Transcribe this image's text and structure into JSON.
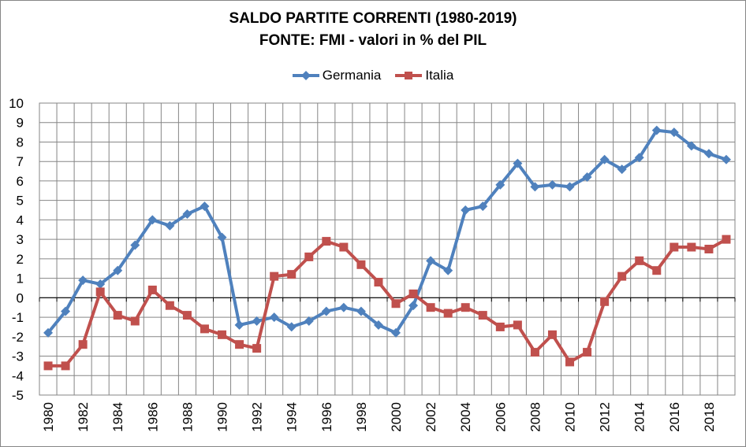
{
  "chart_data": {
    "type": "line",
    "title_lines": [
      "SALDO PARTITE CORRENTI (1980-2019)",
      "FONTE: FMI - valori in % del PIL"
    ],
    "x": [
      1980,
      1981,
      1982,
      1983,
      1984,
      1985,
      1986,
      1987,
      1988,
      1989,
      1990,
      1991,
      1992,
      1993,
      1994,
      1995,
      1996,
      1997,
      1998,
      1999,
      2000,
      2001,
      2002,
      2003,
      2004,
      2005,
      2006,
      2007,
      2008,
      2009,
      2010,
      2011,
      2012,
      2013,
      2014,
      2015,
      2016,
      2017,
      2018,
      2019
    ],
    "x_tick_labels": [
      "1980",
      "1982",
      "1984",
      "1986",
      "1988",
      "1990",
      "1992",
      "1994",
      "1996",
      "1998",
      "2000",
      "2002",
      "2004",
      "2006",
      "2008",
      "2010",
      "2012",
      "2014",
      "2016",
      "2018"
    ],
    "y_ticks": [
      "10",
      "9",
      "8",
      "7",
      "6",
      "5",
      "4",
      "3",
      "2",
      "1",
      "0",
      "-1",
      "-2",
      "-3",
      "-4",
      "-5"
    ],
    "ylim": [
      -5,
      10
    ],
    "grid": true,
    "legend_position": "top",
    "series": [
      {
        "name": "Germania",
        "color": "#4F81BD",
        "marker": "diamond",
        "values": [
          -1.8,
          -0.7,
          0.9,
          0.7,
          1.4,
          2.7,
          4.0,
          3.7,
          4.3,
          4.7,
          3.1,
          -1.4,
          -1.2,
          -1.0,
          -1.5,
          -1.2,
          -0.7,
          -0.5,
          -0.7,
          -1.4,
          -1.8,
          -0.4,
          1.9,
          1.4,
          4.5,
          4.7,
          5.8,
          6.9,
          5.7,
          5.8,
          5.7,
          6.2,
          7.1,
          6.6,
          7.2,
          8.6,
          8.5,
          7.8,
          7.4,
          7.1
        ]
      },
      {
        "name": "Italia",
        "color": "#C0504D",
        "marker": "square",
        "values": [
          -3.5,
          -3.5,
          -2.4,
          0.3,
          -0.9,
          -1.2,
          0.4,
          -0.4,
          -0.9,
          -1.6,
          -1.9,
          -2.4,
          -2.6,
          1.1,
          1.2,
          2.1,
          2.9,
          2.6,
          1.7,
          0.8,
          -0.3,
          0.2,
          -0.5,
          -0.8,
          -0.5,
          -0.9,
          -1.5,
          -1.4,
          -2.8,
          -1.9,
          -3.3,
          -2.8,
          -0.2,
          1.1,
          1.9,
          1.4,
          2.6,
          2.6,
          2.5,
          3.0
        ]
      }
    ]
  }
}
